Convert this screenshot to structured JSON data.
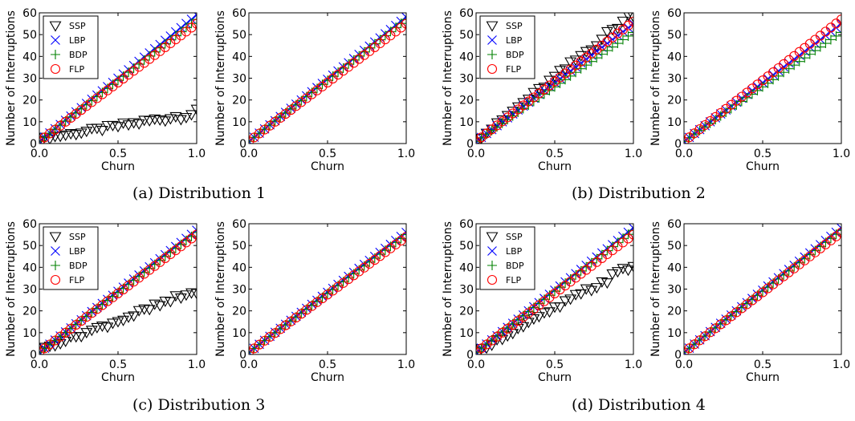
{
  "captions": [
    "(a) Distribution 1",
    "(b) Distribution 2",
    "(c) Distribution 3",
    "(d) Distribution 4"
  ],
  "legend": [
    {
      "name": "SSP",
      "marker": "triangle-down",
      "color": "#000000"
    },
    {
      "name": "LBP",
      "marker": "x",
      "color": "#0000ff"
    },
    {
      "name": "BDP",
      "marker": "plus",
      "color": "#008000"
    },
    {
      "name": "FLP",
      "marker": "circle",
      "color": "#ff0000"
    }
  ],
  "chart_data": [
    {
      "type": "scatter",
      "panel": "a-left",
      "xlabel": "Churn",
      "ylabel": "Number of Interruptions",
      "xlim": [
        0,
        1
      ],
      "ylim": [
        0,
        60
      ],
      "xticks": [
        "0.0",
        "0.5",
        "1.0"
      ],
      "yticks": [
        "0",
        "10",
        "20",
        "30",
        "40",
        "50",
        "60"
      ],
      "legend": true,
      "series": [
        {
          "name": "SSP",
          "start": 2,
          "end": 14
        },
        {
          "name": "LBP",
          "start": 1,
          "end": 59
        },
        {
          "name": "BDP",
          "start": 1,
          "end": 57
        },
        {
          "name": "FLP",
          "start": 1,
          "end": 55
        }
      ]
    },
    {
      "type": "scatter",
      "panel": "a-right",
      "xlabel": "Churn",
      "ylabel": "Number of Interruptions",
      "xlim": [
        0,
        1
      ],
      "ylim": [
        0,
        60
      ],
      "xticks": [
        "0.0",
        "0.5",
        "1.0"
      ],
      "yticks": [
        "0",
        "10",
        "20",
        "30",
        "40",
        "50",
        "60"
      ],
      "legend": false,
      "series": [
        {
          "name": "LBP",
          "start": 1,
          "end": 58
        },
        {
          "name": "BDP",
          "start": 1,
          "end": 57
        },
        {
          "name": "FLP",
          "start": 1,
          "end": 55
        }
      ]
    },
    {
      "type": "scatter",
      "panel": "b-left",
      "xlabel": "Churn",
      "ylabel": "Number of Interruptions",
      "xlim": [
        0,
        1
      ],
      "ylim": [
        0,
        60
      ],
      "xticks": [
        "0.0",
        "0.5",
        "1.0"
      ],
      "yticks": [
        "0",
        "10",
        "20",
        "30",
        "40",
        "50",
        "60"
      ],
      "legend": true,
      "series": [
        {
          "name": "SSP",
          "start": 1,
          "end": 60
        },
        {
          "name": "LBP",
          "start": 1,
          "end": 55
        },
        {
          "name": "BDP",
          "start": 1,
          "end": 51
        },
        {
          "name": "FLP",
          "start": 1,
          "end": 56
        }
      ]
    },
    {
      "type": "scatter",
      "panel": "b-right",
      "xlabel": "Churn",
      "ylabel": "Number of Interruptions",
      "xlim": [
        0,
        1
      ],
      "ylim": [
        0,
        60
      ],
      "xticks": [
        "0.0",
        "0.5",
        "1.0"
      ],
      "yticks": [
        "0",
        "10",
        "20",
        "30",
        "40",
        "50",
        "60"
      ],
      "legend": false,
      "series": [
        {
          "name": "LBP",
          "start": 1,
          "end": 55
        },
        {
          "name": "BDP",
          "start": 1,
          "end": 51
        },
        {
          "name": "FLP",
          "start": 1,
          "end": 57
        }
      ]
    },
    {
      "type": "scatter",
      "panel": "c-left",
      "xlabel": "Churn",
      "ylabel": "Number of Interruptions",
      "xlim": [
        0,
        1
      ],
      "ylim": [
        0,
        60
      ],
      "xticks": [
        "0.0",
        "0.5",
        "1.0"
      ],
      "yticks": [
        "0",
        "10",
        "20",
        "30",
        "40",
        "50",
        "60"
      ],
      "legend": true,
      "series": [
        {
          "name": "SSP",
          "start": 2,
          "end": 29
        },
        {
          "name": "LBP",
          "start": 1,
          "end": 57
        },
        {
          "name": "BDP",
          "start": 1,
          "end": 56
        },
        {
          "name": "FLP",
          "start": 1,
          "end": 55
        }
      ]
    },
    {
      "type": "scatter",
      "panel": "c-right",
      "xlabel": "Churn",
      "ylabel": "Number of Interruptions",
      "xlim": [
        0,
        1
      ],
      "ylim": [
        0,
        60
      ],
      "xticks": [
        "0.0",
        "0.5",
        "1.0"
      ],
      "yticks": [
        "0",
        "10",
        "20",
        "30",
        "40",
        "50",
        "60"
      ],
      "legend": false,
      "series": [
        {
          "name": "LBP",
          "start": 1,
          "end": 56
        },
        {
          "name": "BDP",
          "start": 1,
          "end": 55
        },
        {
          "name": "FLP",
          "start": 1,
          "end": 54
        }
      ]
    },
    {
      "type": "scatter",
      "panel": "d-left",
      "xlabel": "Churn",
      "ylabel": "Number of Interruptions",
      "xlim": [
        0,
        1
      ],
      "ylim": [
        0,
        60
      ],
      "xticks": [
        "0.0",
        "0.5",
        "1.0"
      ],
      "yticks": [
        "0",
        "10",
        "20",
        "30",
        "40",
        "50",
        "60"
      ],
      "legend": true,
      "series": [
        {
          "name": "SSP",
          "start": 1,
          "end": 41
        },
        {
          "name": "LBP",
          "start": 1,
          "end": 58
        },
        {
          "name": "BDP",
          "start": 1,
          "end": 57
        },
        {
          "name": "FLP",
          "start": 1,
          "end": 55
        }
      ]
    },
    {
      "type": "scatter",
      "panel": "d-right",
      "xlabel": "Churn",
      "ylabel": "Number of Interruptions",
      "xlim": [
        0,
        1
      ],
      "ylim": [
        0,
        60
      ],
      "xticks": [
        "0.0",
        "0.5",
        "1.0"
      ],
      "yticks": [
        "0",
        "10",
        "20",
        "30",
        "40",
        "50",
        "60"
      ],
      "legend": false,
      "series": [
        {
          "name": "LBP",
          "start": 1,
          "end": 58
        },
        {
          "name": "BDP",
          "start": 1,
          "end": 57
        },
        {
          "name": "FLP",
          "start": 1,
          "end": 56
        }
      ]
    }
  ]
}
